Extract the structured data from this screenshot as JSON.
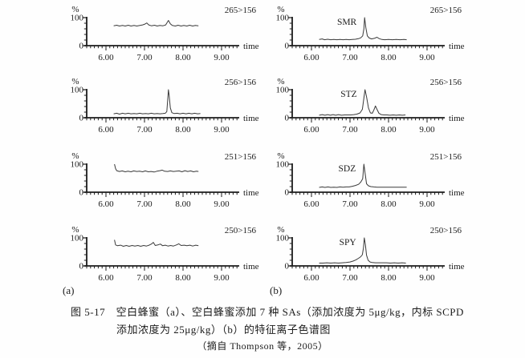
{
  "figure": {
    "panel_a_label": "(a)",
    "panel_b_label": "(b)",
    "caption_line1": "图 5-17　空白蜂蜜（a）、空白蜂蜜添加 7 种 SAs（添加浓度为 5μg/kg，内标 SCPD",
    "caption_line2": "添加浓度为 25μg/kg）（b）的特征离子色谱图",
    "caption_line3": "（摘自 Thompson 等，2005）"
  },
  "colors": {
    "ink": "#1c1c1c",
    "trace": "#3a3a3a",
    "background": "#fefefe"
  },
  "chart_data": {
    "type": "line",
    "axes": {
      "ylabel": "%",
      "xlabel": "time",
      "ylim": [
        0,
        100
      ],
      "xlim": [
        5.45,
        9.45
      ],
      "yticks_labeled": [
        {
          "v": 100,
          "label": "100"
        },
        {
          "v": 0,
          "label": "0"
        }
      ],
      "yticks_minor": [
        20,
        40,
        60,
        80
      ],
      "xticks": [
        {
          "t": 6,
          "label": "6.00"
        },
        {
          "t": 7,
          "label": "7.00"
        },
        {
          "t": 8,
          "label": "8.00"
        },
        {
          "t": 9,
          "label": "9.00"
        }
      ],
      "xminor_step": 0.1,
      "grid": false
    },
    "panels": [
      {
        "id": "a1",
        "column": "a",
        "row": 1,
        "transition": "265>156",
        "peak": null,
        "points": [
          [
            6.2,
            71
          ],
          [
            6.28,
            73
          ],
          [
            6.35,
            70
          ],
          [
            6.43,
            72
          ],
          [
            6.5,
            70
          ],
          [
            6.58,
            73
          ],
          [
            6.65,
            70
          ],
          [
            6.73,
            72
          ],
          [
            6.8,
            70
          ],
          [
            6.88,
            72
          ],
          [
            6.95,
            74
          ],
          [
            7.01,
            77
          ],
          [
            7.06,
            81
          ],
          [
            7.11,
            74
          ],
          [
            7.18,
            71
          ],
          [
            7.26,
            73
          ],
          [
            7.33,
            70
          ],
          [
            7.4,
            72
          ],
          [
            7.48,
            71
          ],
          [
            7.55,
            74
          ],
          [
            7.62,
            90
          ],
          [
            7.67,
            78
          ],
          [
            7.72,
            72
          ],
          [
            7.8,
            70
          ],
          [
            7.87,
            73
          ],
          [
            7.95,
            70
          ],
          [
            8.02,
            72
          ],
          [
            8.1,
            70
          ],
          [
            8.17,
            73
          ],
          [
            8.25,
            70
          ],
          [
            8.32,
            72
          ],
          [
            8.4,
            71
          ]
        ]
      },
      {
        "id": "b1",
        "column": "b",
        "row": 1,
        "transition": "265>156",
        "peak": {
          "label": "SMR",
          "t": 7.38
        },
        "points": [
          [
            6.2,
            22
          ],
          [
            6.28,
            24
          ],
          [
            6.34,
            21
          ],
          [
            6.42,
            23
          ],
          [
            6.5,
            21
          ],
          [
            6.58,
            22
          ],
          [
            6.66,
            21
          ],
          [
            6.74,
            22
          ],
          [
            6.82,
            21
          ],
          [
            6.9,
            22
          ],
          [
            6.98,
            21
          ],
          [
            7.06,
            22
          ],
          [
            7.14,
            23
          ],
          [
            7.22,
            25
          ],
          [
            7.28,
            28
          ],
          [
            7.33,
            35
          ],
          [
            7.36,
            60
          ],
          [
            7.38,
            100
          ],
          [
            7.41,
            65
          ],
          [
            7.45,
            35
          ],
          [
            7.5,
            27
          ],
          [
            7.56,
            24
          ],
          [
            7.63,
            26
          ],
          [
            7.7,
            30
          ],
          [
            7.76,
            25
          ],
          [
            7.83,
            22
          ],
          [
            7.9,
            21
          ],
          [
            8.0,
            22
          ],
          [
            8.1,
            21
          ],
          [
            8.2,
            22
          ],
          [
            8.3,
            21
          ],
          [
            8.4,
            22
          ],
          [
            8.47,
            21
          ]
        ]
      },
      {
        "id": "a2",
        "column": "a",
        "row": 2,
        "transition": "256>156",
        "peak": null,
        "points": [
          [
            6.2,
            14
          ],
          [
            6.28,
            16
          ],
          [
            6.35,
            13
          ],
          [
            6.43,
            16
          ],
          [
            6.5,
            14
          ],
          [
            6.58,
            16
          ],
          [
            6.65,
            14
          ],
          [
            6.73,
            15
          ],
          [
            6.8,
            14
          ],
          [
            6.88,
            16
          ],
          [
            6.95,
            14
          ],
          [
            7.03,
            15
          ],
          [
            7.1,
            14
          ],
          [
            7.18,
            16
          ],
          [
            7.25,
            14
          ],
          [
            7.33,
            15
          ],
          [
            7.4,
            14
          ],
          [
            7.48,
            15
          ],
          [
            7.54,
            16
          ],
          [
            7.58,
            22
          ],
          [
            7.6,
            60
          ],
          [
            7.62,
            100
          ],
          [
            7.64,
            80
          ],
          [
            7.67,
            35
          ],
          [
            7.71,
            18
          ],
          [
            7.77,
            15
          ],
          [
            7.85,
            16
          ],
          [
            7.92,
            14
          ],
          [
            8.0,
            16
          ],
          [
            8.08,
            14
          ],
          [
            8.15,
            16
          ],
          [
            8.23,
            14
          ],
          [
            8.3,
            16
          ],
          [
            8.38,
            14
          ],
          [
            8.45,
            15
          ]
        ]
      },
      {
        "id": "b2",
        "column": "b",
        "row": 2,
        "transition": "256>156",
        "peak": {
          "label": "STZ",
          "t": 7.39
        },
        "points": [
          [
            6.2,
            9
          ],
          [
            6.28,
            11
          ],
          [
            6.35,
            9
          ],
          [
            6.42,
            11
          ],
          [
            6.49,
            9
          ],
          [
            6.56,
            11
          ],
          [
            6.63,
            9
          ],
          [
            6.7,
            11
          ],
          [
            6.78,
            9
          ],
          [
            6.86,
            10
          ],
          [
            6.94,
            10
          ],
          [
            7.02,
            10
          ],
          [
            7.1,
            11
          ],
          [
            7.18,
            13
          ],
          [
            7.26,
            17
          ],
          [
            7.32,
            30
          ],
          [
            7.36,
            70
          ],
          [
            7.39,
            100
          ],
          [
            7.43,
            75
          ],
          [
            7.48,
            35
          ],
          [
            7.53,
            17
          ],
          [
            7.58,
            16
          ],
          [
            7.62,
            28
          ],
          [
            7.66,
            42
          ],
          [
            7.7,
            30
          ],
          [
            7.75,
            16
          ],
          [
            7.81,
            11
          ],
          [
            7.88,
            10
          ],
          [
            7.96,
            10
          ],
          [
            8.04,
            9
          ],
          [
            8.12,
            10
          ],
          [
            8.2,
            9
          ],
          [
            8.28,
            10
          ],
          [
            8.36,
            9
          ],
          [
            8.44,
            10
          ]
        ]
      },
      {
        "id": "a3",
        "column": "a",
        "row": 3,
        "transition": "251>156",
        "peak": null,
        "points": [
          [
            6.22,
            100
          ],
          [
            6.25,
            84
          ],
          [
            6.28,
            77
          ],
          [
            6.35,
            74
          ],
          [
            6.42,
            76
          ],
          [
            6.5,
            73
          ],
          [
            6.57,
            75
          ],
          [
            6.65,
            73
          ],
          [
            6.72,
            76
          ],
          [
            6.8,
            74
          ],
          [
            6.87,
            75
          ],
          [
            6.95,
            73
          ],
          [
            7.02,
            76
          ],
          [
            7.1,
            73
          ],
          [
            7.17,
            74
          ],
          [
            7.25,
            72
          ],
          [
            7.32,
            75
          ],
          [
            7.4,
            77
          ],
          [
            7.46,
            79
          ],
          [
            7.52,
            75
          ],
          [
            7.6,
            74
          ],
          [
            7.67,
            76
          ],
          [
            7.75,
            74
          ],
          [
            7.82,
            75
          ],
          [
            7.9,
            76
          ],
          [
            7.97,
            73
          ],
          [
            8.05,
            77
          ],
          [
            8.12,
            74
          ],
          [
            8.2,
            76
          ],
          [
            8.27,
            73
          ],
          [
            8.35,
            75
          ],
          [
            8.4,
            74
          ]
        ]
      },
      {
        "id": "b3",
        "column": "b",
        "row": 3,
        "transition": "251>156",
        "peak": {
          "label": "SDZ",
          "t": 7.36
        },
        "points": [
          [
            6.2,
            17
          ],
          [
            6.28,
            19
          ],
          [
            6.35,
            17
          ],
          [
            6.43,
            19
          ],
          [
            6.5,
            17
          ],
          [
            6.58,
            18
          ],
          [
            6.66,
            17
          ],
          [
            6.74,
            19
          ],
          [
            6.82,
            18
          ],
          [
            6.9,
            19
          ],
          [
            6.98,
            19
          ],
          [
            7.06,
            21
          ],
          [
            7.14,
            24
          ],
          [
            7.22,
            28
          ],
          [
            7.28,
            36
          ],
          [
            7.33,
            48
          ],
          [
            7.36,
            100
          ],
          [
            7.39,
            70
          ],
          [
            7.43,
            30
          ],
          [
            7.48,
            23
          ],
          [
            7.54,
            20
          ],
          [
            7.62,
            19
          ],
          [
            7.7,
            18
          ],
          [
            7.8,
            18
          ],
          [
            7.9,
            18
          ],
          [
            8.0,
            18
          ],
          [
            8.1,
            18
          ],
          [
            8.2,
            18
          ],
          [
            8.3,
            18
          ],
          [
            8.4,
            18
          ],
          [
            8.47,
            18
          ]
        ]
      },
      {
        "id": "a4",
        "column": "a",
        "row": 4,
        "transition": "250>156",
        "peak": null,
        "points": [
          [
            6.22,
            93
          ],
          [
            6.25,
            75
          ],
          [
            6.3,
            72
          ],
          [
            6.38,
            74
          ],
          [
            6.45,
            70
          ],
          [
            6.53,
            73
          ],
          [
            6.6,
            70
          ],
          [
            6.68,
            73
          ],
          [
            6.75,
            71
          ],
          [
            6.83,
            73
          ],
          [
            6.9,
            70
          ],
          [
            6.98,
            73
          ],
          [
            7.05,
            71
          ],
          [
            7.12,
            74
          ],
          [
            7.18,
            78
          ],
          [
            7.23,
            84
          ],
          [
            7.28,
            73
          ],
          [
            7.35,
            75
          ],
          [
            7.41,
            78
          ],
          [
            7.47,
            72
          ],
          [
            7.54,
            74
          ],
          [
            7.61,
            71
          ],
          [
            7.68,
            73
          ],
          [
            7.75,
            71
          ],
          [
            7.83,
            75
          ],
          [
            7.89,
            79
          ],
          [
            7.95,
            73
          ],
          [
            8.03,
            74
          ],
          [
            8.1,
            72
          ],
          [
            8.18,
            74
          ],
          [
            8.25,
            71
          ],
          [
            8.33,
            74
          ],
          [
            8.4,
            72
          ]
        ]
      },
      {
        "id": "b4",
        "column": "b",
        "row": 4,
        "transition": "250>156",
        "peak": {
          "label": "SPY",
          "t": 7.37
        },
        "points": [
          [
            6.2,
            10
          ],
          [
            6.3,
            10
          ],
          [
            6.4,
            11
          ],
          [
            6.5,
            10
          ],
          [
            6.6,
            11
          ],
          [
            6.7,
            10
          ],
          [
            6.8,
            11
          ],
          [
            6.9,
            12
          ],
          [
            7.0,
            14
          ],
          [
            7.08,
            17
          ],
          [
            7.15,
            21
          ],
          [
            7.22,
            27
          ],
          [
            7.28,
            33
          ],
          [
            7.32,
            40
          ],
          [
            7.35,
            65
          ],
          [
            7.37,
            100
          ],
          [
            7.4,
            75
          ],
          [
            7.43,
            38
          ],
          [
            7.47,
            20
          ],
          [
            7.52,
            14
          ],
          [
            7.58,
            12
          ],
          [
            7.66,
            11
          ],
          [
            7.75,
            11
          ],
          [
            7.85,
            11
          ],
          [
            7.95,
            11
          ],
          [
            8.05,
            10
          ],
          [
            8.15,
            11
          ],
          [
            8.25,
            10
          ],
          [
            8.35,
            11
          ],
          [
            8.45,
            10
          ]
        ]
      }
    ]
  }
}
